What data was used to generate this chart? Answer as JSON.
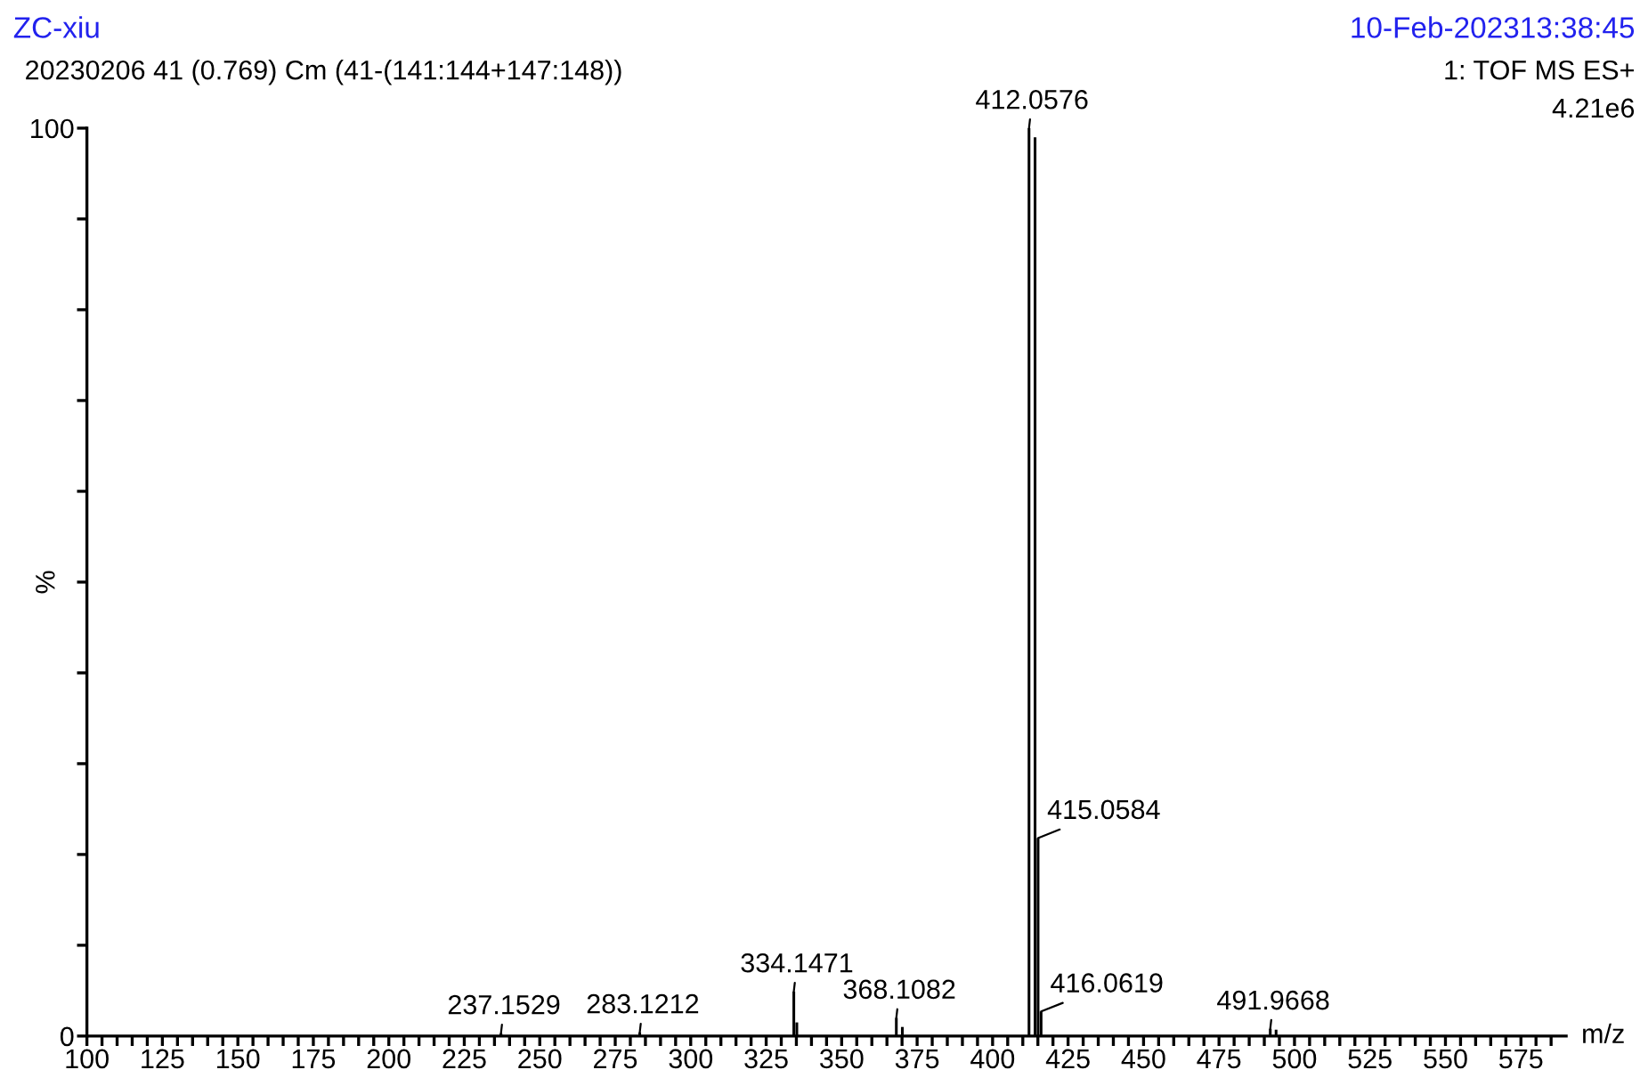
{
  "chart_data": {
    "type": "bar",
    "title": "ZC-xiu",
    "subtitle": "20230206 41 (0.769) Cm (41-(141:144+147:148))",
    "xlabel": "m/z",
    "ylabel": "%",
    "x": [
      237.15,
      283.12,
      334.15,
      335.15,
      368.11,
      370.1,
      412.06,
      414.06,
      415.06,
      416.06,
      491.97,
      493.9
    ],
    "series": [
      {
        "color": "#000000",
        "values": [
          0.3,
          0.4,
          4.9,
          1.5,
          2.0,
          1.0,
          100,
          99,
          21.8,
          2.7,
          0.8,
          0.7
        ]
      }
    ],
    "xlim": [
      100,
      590
    ],
    "ylim": [
      0,
      100
    ],
    "xticks": [
      100,
      {
        "value": 105,
        "label": null
      },
      {
        "value": 110,
        "label": null
      },
      {
        "value": 115,
        "label": null
      },
      {
        "value": 120,
        "label": null
      },
      125,
      {
        "value": 130,
        "label": null
      },
      {
        "value": 135,
        "label": null
      },
      {
        "value": 140,
        "label": null
      },
      {
        "value": 145,
        "label": null
      },
      150,
      {
        "value": 155,
        "label": null
      },
      {
        "value": 160,
        "label": null
      },
      {
        "value": 165,
        "label": null
      },
      {
        "value": 170,
        "label": null
      },
      175,
      {
        "value": 180,
        "label": null
      },
      {
        "value": 185,
        "label": null
      },
      {
        "value": 190,
        "label": null
      },
      {
        "value": 195,
        "label": null
      },
      200,
      {
        "value": 205,
        "label": null
      },
      {
        "value": 210,
        "label": null
      },
      {
        "value": 215,
        "label": null
      },
      {
        "value": 220,
        "label": null
      },
      225,
      {
        "value": 230,
        "label": null
      },
      {
        "value": 235,
        "label": null
      },
      {
        "value": 240,
        "label": null
      },
      {
        "value": 245,
        "label": null
      },
      250,
      {
        "value": 255,
        "label": null
      },
      {
        "value": 260,
        "label": null
      },
      {
        "value": 265,
        "label": null
      },
      {
        "value": 270,
        "label": null
      },
      275,
      {
        "value": 280,
        "label": null
      },
      {
        "value": 285,
        "label": null
      },
      {
        "value": 290,
        "label": null
      },
      {
        "value": 295,
        "label": null
      },
      300,
      {
        "value": 305,
        "label": null
      },
      {
        "value": 310,
        "label": null
      },
      {
        "value": 315,
        "label": null
      },
      {
        "value": 320,
        "label": null
      },
      325,
      {
        "value": 330,
        "label": null
      },
      {
        "value": 335,
        "label": null
      },
      {
        "value": 340,
        "label": null
      },
      {
        "value": 345,
        "label": null
      },
      350,
      {
        "value": 355,
        "label": null
      },
      {
        "value": 360,
        "label": null
      },
      {
        "value": 365,
        "label": null
      },
      {
        "value": 370,
        "label": null
      },
      375,
      {
        "value": 380,
        "label": null
      },
      {
        "value": 385,
        "label": null
      },
      {
        "value": 390,
        "label": null
      },
      {
        "value": 395,
        "label": null
      },
      400,
      {
        "value": 405,
        "label": null
      },
      {
        "value": 410,
        "label": null
      },
      {
        "value": 415,
        "label": null
      },
      {
        "value": 420,
        "label": null
      },
      425,
      {
        "value": 430,
        "label": null
      },
      {
        "value": 435,
        "label": null
      },
      {
        "value": 440,
        "label": null
      },
      {
        "value": 445,
        "label": null
      },
      450,
      {
        "value": 455,
        "label": null
      },
      {
        "value": 460,
        "label": null
      },
      {
        "value": 465,
        "label": null
      },
      {
        "value": 470,
        "label": null
      },
      475,
      {
        "value": 480,
        "label": null
      },
      {
        "value": 485,
        "label": null
      },
      {
        "value": 490,
        "label": null
      },
      {
        "value": 495,
        "label": null
      },
      500,
      {
        "value": 505,
        "label": null
      },
      {
        "value": 510,
        "label": null
      },
      {
        "value": 515,
        "label": null
      },
      {
        "value": 520,
        "label": null
      },
      525,
      {
        "value": 530,
        "label": null
      },
      {
        "value": 535,
        "label": null
      },
      {
        "value": 540,
        "label": null
      },
      {
        "value": 545,
        "label": null
      },
      550,
      {
        "value": 555,
        "label": null
      },
      {
        "value": 560,
        "label": null
      },
      {
        "value": 565,
        "label": null
      },
      {
        "value": 570,
        "label": null
      },
      575,
      {
        "value": 580,
        "label": null
      },
      {
        "value": 585,
        "label": null
      }
    ],
    "yticks": [
      0,
      {
        "value": 10,
        "label": null
      },
      {
        "value": 20,
        "label": null
      },
      {
        "value": 30,
        "label": null
      },
      {
        "value": 40,
        "label": null
      },
      {
        "value": 50,
        "label": null
      },
      {
        "value": 60,
        "label": null
      },
      {
        "value": 70,
        "label": null
      },
      {
        "value": 80,
        "label": null
      },
      {
        "value": 90,
        "label": null
      },
      100
    ],
    "grid": false,
    "legend": false,
    "annotations": [
      "10-Feb-202313:38:45",
      "1: TOF MS ES+",
      "4.21e6",
      {
        "text": "237.1529",
        "x": 237.15,
        "y": 0.3
      },
      {
        "text": "283.1212",
        "x": 283.12,
        "y": 0.4
      },
      {
        "text": "334.1471",
        "x": 334.15,
        "y": 4.9
      },
      {
        "text": "368.1082",
        "x": 368.11,
        "y": 2.0
      },
      {
        "text": "412.0576",
        "x": 412.06,
        "y": 100
      },
      {
        "text": "415.0584",
        "x": 415.06,
        "y": 21.8
      },
      {
        "text": "416.0619",
        "x": 416.06,
        "y": 2.7
      },
      {
        "text": "491.9668",
        "x": 491.97,
        "y": 0.8
      }
    ]
  }
}
